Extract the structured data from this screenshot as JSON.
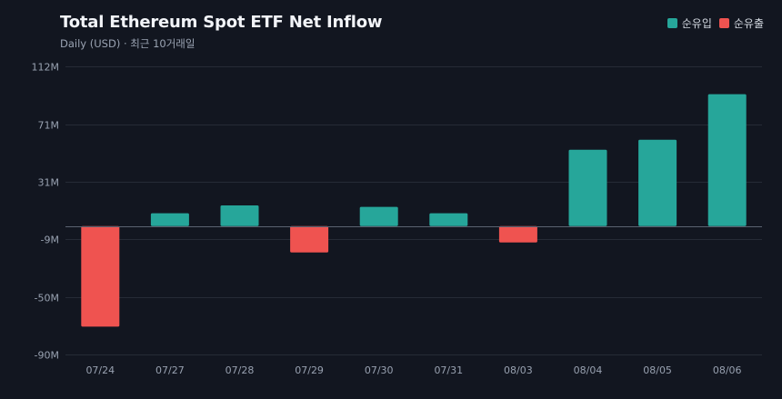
{
  "colors": {
    "background": "#121620",
    "inflow": "#26a69a",
    "outflow": "#ef5350",
    "grid": "#262b36",
    "zero_line": "#5b6270"
  },
  "chart_data": {
    "type": "bar",
    "title": "Total Ethereum Spot ETF Net Inflow",
    "subtitle": "Daily (USD) · 최근 10거래일",
    "legend_position": "top-right",
    "legend": [
      {
        "label": "순유입",
        "color": "#26a69a"
      },
      {
        "label": "순유출",
        "color": "#ef5350"
      }
    ],
    "categories": [
      "07/24",
      "07/27",
      "07/28",
      "07/29",
      "07/30",
      "07/31",
      "08/03",
      "08/04",
      "08/05",
      "08/06"
    ],
    "values": [
      -70.5,
      9,
      14.5,
      -18.5,
      13.5,
      9,
      -11.5,
      53.5,
      60.5,
      92.5
    ],
    "y_ticks": [
      112,
      71,
      31,
      -9,
      -50,
      -90
    ],
    "y_tick_labels": [
      "112M",
      "71M",
      "31M",
      "-9M",
      "-50M",
      "-90M"
    ],
    "ylim": [
      -90,
      112
    ],
    "grid": true
  }
}
